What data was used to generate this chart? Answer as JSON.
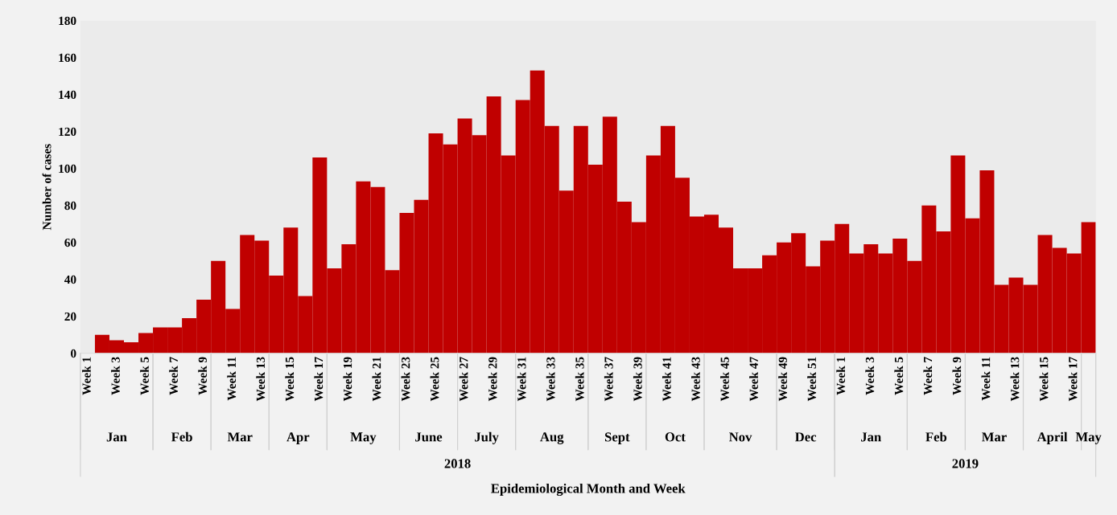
{
  "chart_data": {
    "type": "bar",
    "ylabel": "Number of cases",
    "categories": [
      "Week 1",
      null,
      "Week 3",
      null,
      "Week 5",
      null,
      "Week 7",
      null,
      "Week 9",
      null,
      "Week 11",
      null,
      "Week 13",
      null,
      "Week 15",
      null,
      "Week 17",
      null,
      "Week 19",
      null,
      "Week 21",
      null,
      "Week 23",
      null,
      "Week 25",
      null,
      "Week 27",
      null,
      "Week 29",
      null,
      "Week 31",
      null,
      "Week 33",
      null,
      "Week 35",
      null,
      "Week 37",
      null,
      "Week 39",
      null,
      "Week 41",
      null,
      "Week 43",
      null,
      "Week 45",
      null,
      "Week 47",
      null,
      "Week 49",
      null,
      "Week 51",
      null,
      "Week 1",
      null,
      "Week 3",
      null,
      "Week 5",
      null,
      "Week 7",
      null,
      "Week 9",
      null,
      "Week 11",
      null,
      "Week 13",
      null,
      "Week 15",
      null,
      "Week 17",
      null
    ],
    "values": [
      0,
      10,
      7,
      6,
      11,
      14,
      14,
      19,
      29,
      50,
      24,
      64,
      61,
      42,
      68,
      31,
      106,
      46,
      59,
      93,
      90,
      45,
      76,
      83,
      119,
      113,
      127,
      118,
      139,
      107,
      137,
      153,
      123,
      88,
      123,
      102,
      128,
      82,
      71,
      107,
      123,
      95,
      74,
      75,
      68,
      46,
      46,
      53,
      60,
      65,
      47,
      61,
      70,
      54,
      59,
      54,
      62,
      50,
      80,
      66,
      107,
      73,
      99,
      37,
      41,
      37,
      64,
      57,
      54,
      71
    ],
    "color": "#c00000",
    "ylim": [
      0,
      180
    ],
    "yticks": [
      0,
      20,
      40,
      60,
      80,
      100,
      120,
      140,
      160,
      180
    ],
    "grid": false,
    "legend": false,
    "annotations": [
      "Jan",
      "Feb",
      "Mar",
      "Apr",
      "May",
      "June",
      "July",
      "Aug",
      "Sept",
      "Oct",
      "Nov",
      "Dec",
      "Jan",
      "Feb",
      "Mar",
      "April",
      "May",
      "2018",
      "2019",
      "Epidemiological Month and Week"
    ]
  }
}
